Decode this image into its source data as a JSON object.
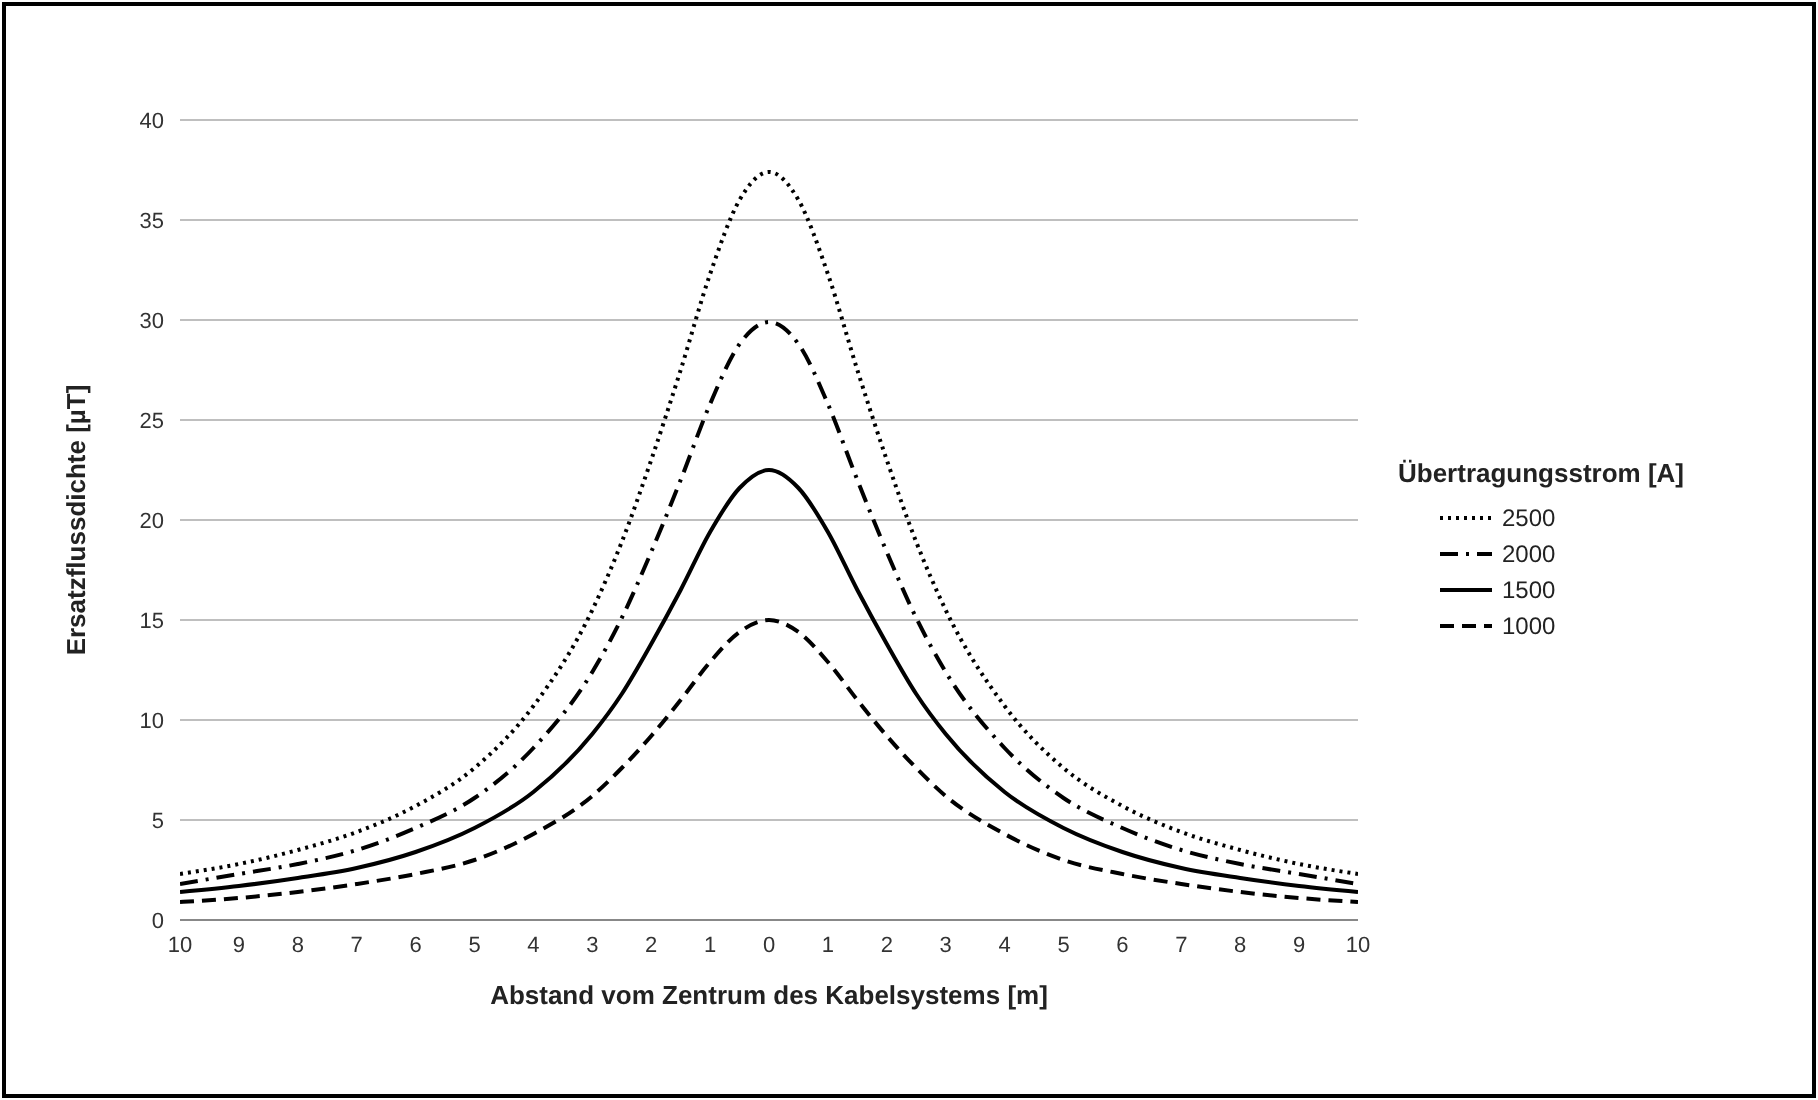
{
  "chart_data": {
    "type": "line",
    "xlabel": "Abstand vom Zentrum des Kabelsystems [m]",
    "ylabel": "Ersatzflussdichte [µT]",
    "legend_title": "Übertragungsstrom [A]",
    "x": [
      -10,
      -9,
      -8,
      -7,
      -6,
      -5,
      -4,
      -3,
      -2.5,
      -2,
      -1.5,
      -1,
      -0.5,
      0,
      0.5,
      1,
      1.5,
      2,
      2.5,
      3,
      4,
      5,
      6,
      7,
      8,
      9,
      10
    ],
    "series": [
      {
        "name": "2500",
        "color": "#000000",
        "line_style": "dotted",
        "values": [
          2.3,
          2.8,
          3.5,
          4.4,
          5.7,
          7.6,
          10.7,
          15.5,
          18.9,
          23.0,
          27.5,
          32.3,
          36.0,
          37.4,
          36.0,
          32.3,
          27.5,
          23.0,
          18.9,
          15.5,
          10.7,
          7.6,
          5.7,
          4.4,
          3.5,
          2.8,
          2.3
        ]
      },
      {
        "name": "2000",
        "color": "#000000",
        "line_style": "dashdot",
        "values": [
          1.8,
          2.3,
          2.8,
          3.5,
          4.6,
          6.1,
          8.6,
          12.4,
          15.1,
          18.4,
          22.0,
          25.8,
          28.8,
          29.9,
          28.8,
          25.8,
          22.0,
          18.4,
          15.1,
          12.4,
          8.6,
          6.1,
          4.6,
          3.5,
          2.8,
          2.3,
          1.8
        ]
      },
      {
        "name": "1500",
        "color": "#000000",
        "line_style": "solid",
        "values": [
          1.4,
          1.7,
          2.1,
          2.6,
          3.4,
          4.6,
          6.4,
          9.3,
          11.3,
          13.8,
          16.5,
          19.4,
          21.6,
          22.5,
          21.6,
          19.4,
          16.5,
          13.8,
          11.3,
          9.3,
          6.4,
          4.6,
          3.4,
          2.6,
          2.1,
          1.7,
          1.4
        ]
      },
      {
        "name": "1000",
        "color": "#000000",
        "line_style": "dashed",
        "values": [
          0.9,
          1.1,
          1.4,
          1.8,
          2.3,
          3.0,
          4.3,
          6.2,
          7.6,
          9.2,
          11.0,
          12.9,
          14.4,
          15.0,
          14.4,
          12.9,
          11.0,
          9.2,
          7.6,
          6.2,
          4.3,
          3.0,
          2.3,
          1.8,
          1.4,
          1.1,
          0.9
        ]
      }
    ],
    "xlim": [
      -10,
      10
    ],
    "xticks": [
      {
        "value": -10,
        "label": "10"
      },
      {
        "value": -9,
        "label": "9"
      },
      {
        "value": -8,
        "label": "8"
      },
      {
        "value": -7,
        "label": "7"
      },
      {
        "value": -6,
        "label": "6"
      },
      {
        "value": -5,
        "label": "5"
      },
      {
        "value": -4,
        "label": "4"
      },
      {
        "value": -3,
        "label": "3"
      },
      {
        "value": -2,
        "label": "2"
      },
      {
        "value": -1,
        "label": "1"
      },
      0,
      1,
      2,
      3,
      4,
      5,
      6,
      7,
      8,
      9,
      10
    ],
    "ylim": [
      0,
      40
    ],
    "yticks": [
      0,
      5,
      10,
      15,
      20,
      25,
      30,
      35,
      40
    ],
    "grid": "y",
    "legend": "right",
    "marker": "none"
  }
}
